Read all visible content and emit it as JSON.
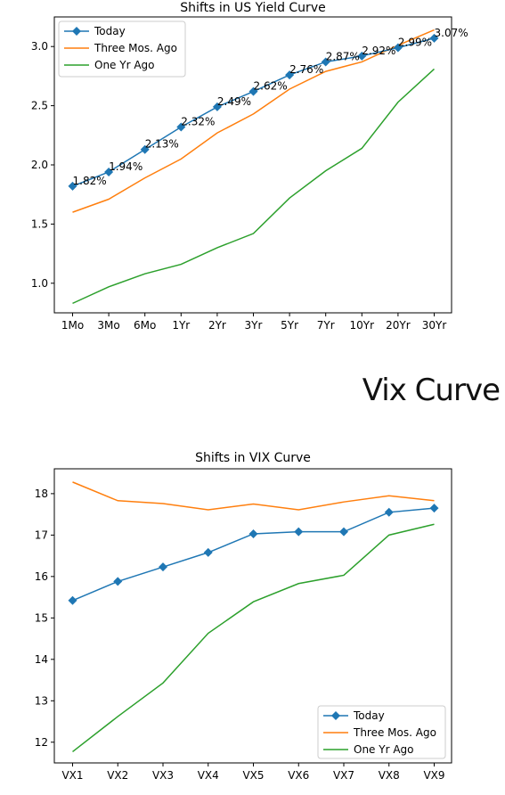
{
  "section_heading": "Vix Curve",
  "chart_data": [
    {
      "type": "line",
      "title": "Shifts in US Yield Curve",
      "xlabel": "",
      "ylabel": "",
      "categories": [
        "1Mo",
        "3Mo",
        "6Mo",
        "1Yr",
        "2Yr",
        "3Yr",
        "5Yr",
        "7Yr",
        "10Yr",
        "20Yr",
        "30Yr"
      ],
      "ylim": [
        0.75,
        3.25
      ],
      "yticks": [
        1.0,
        1.5,
        2.0,
        2.5,
        3.0
      ],
      "ytick_labels": [
        "1.0",
        "1.5",
        "2.0",
        "2.5",
        "3.0"
      ],
      "grid": false,
      "legend_position": "top-left",
      "series": [
        {
          "name": "Today",
          "color": "#1f77b4",
          "marker": "diamond",
          "values": [
            1.82,
            1.94,
            2.13,
            2.32,
            2.49,
            2.62,
            2.76,
            2.87,
            2.92,
            2.99,
            3.07
          ],
          "data_labels": [
            "1.82%",
            "1.94%",
            "2.13%",
            "2.32%",
            "2.49%",
            "2.62%",
            "2.76%",
            "2.87%",
            "2.92%",
            "2.99%",
            "3.07%"
          ]
        },
        {
          "name": "Three Mos. Ago",
          "color": "#ff7f0e",
          "marker": "none",
          "values": [
            1.6,
            1.71,
            1.89,
            2.05,
            2.27,
            2.43,
            2.64,
            2.79,
            2.87,
            3.01,
            3.14
          ]
        },
        {
          "name": "One Yr Ago",
          "color": "#2ca02c",
          "marker": "none",
          "values": [
            0.83,
            0.97,
            1.08,
            1.16,
            1.3,
            1.42,
            1.72,
            1.95,
            2.14,
            2.53,
            2.81
          ]
        }
      ]
    },
    {
      "type": "line",
      "title": "Shifts in VIX Curve",
      "xlabel": "",
      "ylabel": "",
      "categories": [
        "VX1",
        "VX2",
        "VX3",
        "VX4",
        "VX5",
        "VX6",
        "VX7",
        "VX8",
        "VX9"
      ],
      "ylim": [
        11.5,
        18.6
      ],
      "yticks": [
        12,
        13,
        14,
        15,
        16,
        17,
        18
      ],
      "ytick_labels": [
        "12",
        "13",
        "14",
        "15",
        "16",
        "17",
        "18"
      ],
      "grid": false,
      "legend_position": "bottom-right",
      "series": [
        {
          "name": "Today",
          "color": "#1f77b4",
          "marker": "diamond",
          "values": [
            15.42,
            15.88,
            16.23,
            16.58,
            17.03,
            17.08,
            17.08,
            17.55,
            17.65
          ]
        },
        {
          "name": "Three Mos. Ago",
          "color": "#ff7f0e",
          "marker": "none",
          "values": [
            18.28,
            17.83,
            17.76,
            17.61,
            17.75,
            17.61,
            17.8,
            17.95,
            17.83
          ]
        },
        {
          "name": "One Yr Ago",
          "color": "#2ca02c",
          "marker": "none",
          "values": [
            11.77,
            12.62,
            13.43,
            14.63,
            15.39,
            15.83,
            16.03,
            17.0,
            17.26
          ]
        }
      ]
    }
  ]
}
